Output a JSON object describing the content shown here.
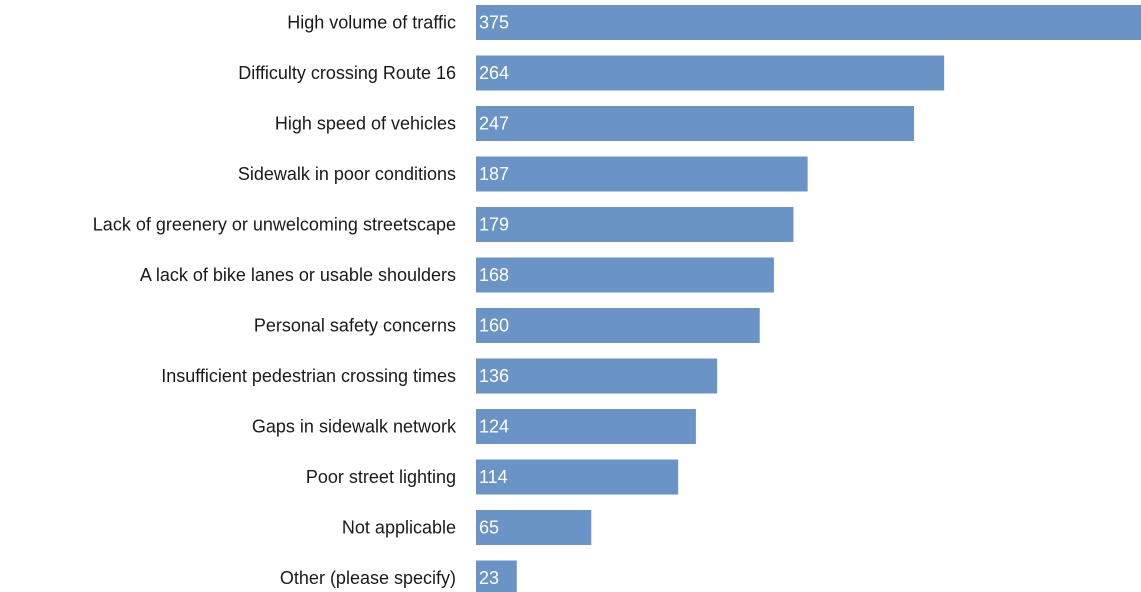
{
  "chart_data": {
    "type": "bar",
    "orientation": "horizontal",
    "categories": [
      "High volume of traffic",
      "Difficulty crossing Route 16",
      "High speed of vehicles",
      "Sidewalk in poor conditions",
      "Lack of greenery or unwelcoming streetscape",
      "A lack of bike lanes or usable shoulders",
      "Personal safety concerns",
      "Insufficient pedestrian crossing times",
      "Gaps in sidewalk network",
      "Poor street lighting",
      "Not applicable",
      "Other (please specify)"
    ],
    "values": [
      375,
      264,
      247,
      187,
      179,
      168,
      160,
      136,
      124,
      114,
      65,
      23
    ],
    "xlim": [
      0,
      375
    ],
    "bar_color": "#6a93c6",
    "value_label_color": "#ffffff",
    "grid": false,
    "legend": "none"
  }
}
